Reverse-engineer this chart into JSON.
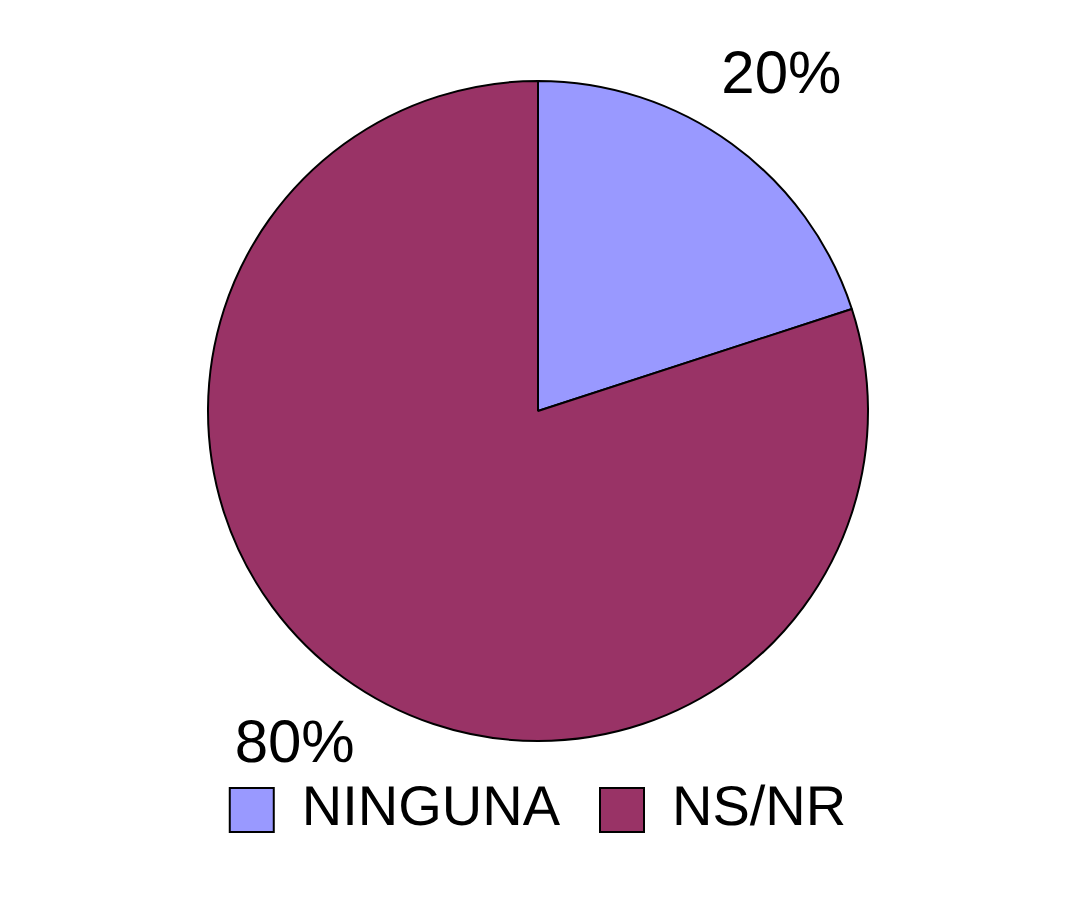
{
  "chart_data": {
    "type": "pie",
    "categories": [
      "NINGUNA",
      "NS/NR"
    ],
    "values": [
      20,
      80
    ],
    "value_labels": [
      "20%",
      "80%"
    ],
    "colors": [
      "#9999ff",
      "#993366"
    ],
    "legend": "bottom"
  }
}
